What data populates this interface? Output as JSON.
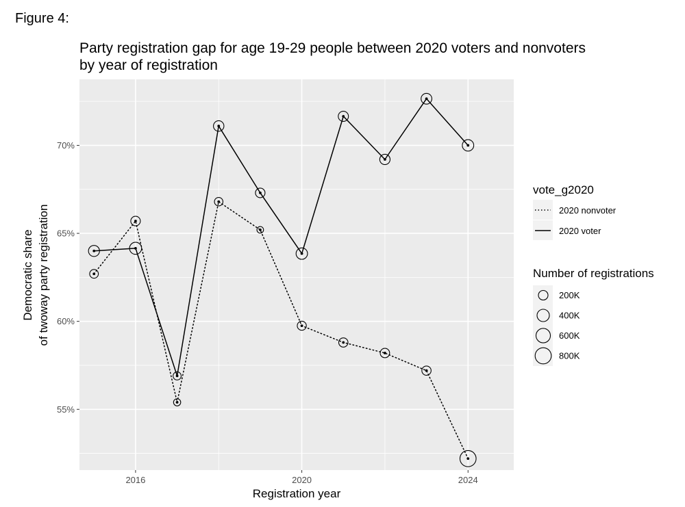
{
  "figure_label": "Figure 4:",
  "chart_data": {
    "type": "line",
    "title_line1": "Party registration gap for age 19-29 people between 2020 voters and nonvoters",
    "title_line2": "by year of registration",
    "xlabel": "Registration year",
    "ylabel_line1": "Democratic share",
    "ylabel_line2": "of twoway party registration",
    "x": [
      2015,
      2016,
      2017,
      2018,
      2019,
      2020,
      2021,
      2022,
      2023,
      2024
    ],
    "xlim": [
      2014.65,
      2025.1
    ],
    "ylim": [
      0.5155,
      0.7375
    ],
    "x_ticks": [
      2016,
      2020,
      2024
    ],
    "x_tick_labels": [
      "2016",
      "2020",
      "2024"
    ],
    "y_ticks": [
      0.55,
      0.6,
      0.65,
      0.7
    ],
    "y_tick_labels": [
      "55%",
      "60%",
      "65%",
      "70%"
    ],
    "grid": true,
    "series": [
      {
        "name": "2020 nonvoter",
        "line_style": "dotted",
        "values": [
          0.627,
          0.657,
          0.554,
          0.668,
          0.652,
          0.5975,
          0.588,
          0.582,
          0.572,
          0.522
        ],
        "registrations_k": [
          150,
          200,
          80,
          140,
          60,
          170,
          180,
          190,
          180,
          800
        ]
      },
      {
        "name": "2020 voter",
        "line_style": "solid",
        "values": [
          0.64,
          0.6415,
          0.569,
          0.711,
          0.673,
          0.6385,
          0.7165,
          0.692,
          0.7265,
          0.7
        ],
        "registrations_k": [
          300,
          380,
          120,
          260,
          200,
          330,
          240,
          250,
          280,
          330
        ]
      }
    ],
    "legend": {
      "placement": "right",
      "color_title": "vote_g2020",
      "size_title": "Number of registrations",
      "size_labels": [
        "200K",
        "400K",
        "600K",
        "800K"
      ],
      "size_values_k": [
        200,
        400,
        600,
        800
      ]
    },
    "colors": {
      "panel": "#ebebeb",
      "grid": "#ffffff",
      "line": "#000000",
      "legend_key_bg": "#f2f2f2"
    }
  }
}
